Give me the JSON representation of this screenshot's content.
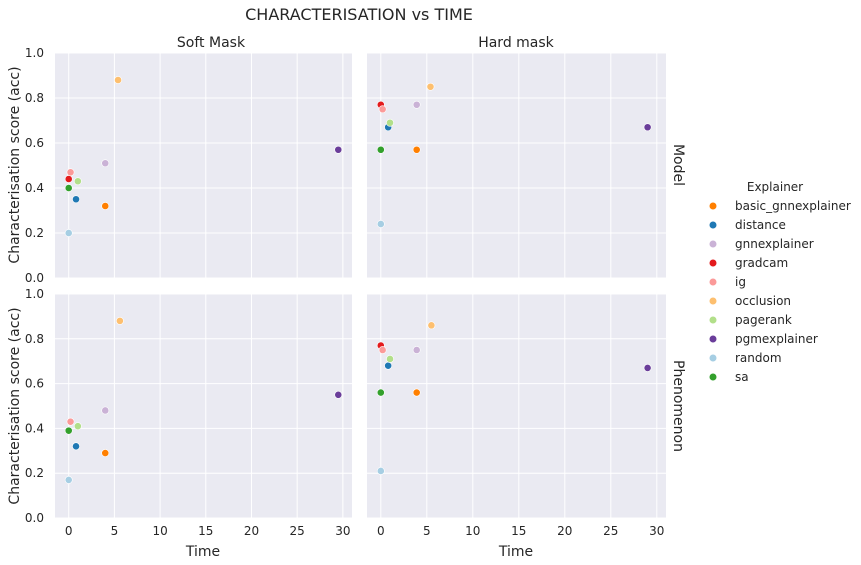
{
  "chart_data": {
    "type": "scatter",
    "title": "CHARACTERISATION vs TIME",
    "xlabel": "Time",
    "ylabel": "Characterisation score (acc)",
    "xlim": [
      -1.5,
      31
    ],
    "ylim": [
      0,
      1.0
    ],
    "xticks": [
      0,
      5,
      10,
      15,
      20,
      25,
      30
    ],
    "yticks": [
      0.0,
      0.2,
      0.4,
      0.6,
      0.8,
      1.0
    ],
    "xtick_labels": [
      "0",
      "5",
      "10",
      "15",
      "20",
      "25",
      "30"
    ],
    "ytick_labels": [
      "0.0",
      "0.2",
      "0.4",
      "0.6",
      "0.8",
      "1.0"
    ],
    "grid": true,
    "columns": [
      "Soft Mask",
      "Hard mask"
    ],
    "rows": [
      "Model",
      "Phenomenon"
    ],
    "legend": {
      "title": "Explainer",
      "placement": "right",
      "items": [
        {
          "name": "basic_gnnexplainer",
          "color": "#ff7f00"
        },
        {
          "name": "distance",
          "color": "#1f78b4"
        },
        {
          "name": "gnnexplainer",
          "color": "#cab2d6"
        },
        {
          "name": "gradcam",
          "color": "#e31a1c"
        },
        {
          "name": "ig",
          "color": "#fb9a99"
        },
        {
          "name": "occlusion",
          "color": "#fdbf6f"
        },
        {
          "name": "pagerank",
          "color": "#b2df8a"
        },
        {
          "name": "pgmexplainer",
          "color": "#6a3d9a"
        },
        {
          "name": "random",
          "color": "#a6cee3"
        },
        {
          "name": "sa",
          "color": "#33a02c"
        }
      ]
    },
    "panels": [
      {
        "row": "Model",
        "col": "Soft Mask",
        "points": [
          {
            "explainer": "basic_gnnexplainer",
            "x": 4.0,
            "y": 0.32
          },
          {
            "explainer": "distance",
            "x": 0.8,
            "y": 0.35
          },
          {
            "explainer": "gnnexplainer",
            "x": 4.0,
            "y": 0.51
          },
          {
            "explainer": "gradcam",
            "x": 0.0,
            "y": 0.44
          },
          {
            "explainer": "ig",
            "x": 0.2,
            "y": 0.47
          },
          {
            "explainer": "occlusion",
            "x": 5.4,
            "y": 0.88
          },
          {
            "explainer": "pagerank",
            "x": 1.0,
            "y": 0.43
          },
          {
            "explainer": "pgmexplainer",
            "x": 29.5,
            "y": 0.57
          },
          {
            "explainer": "random",
            "x": 0.0,
            "y": 0.2
          },
          {
            "explainer": "sa",
            "x": 0.0,
            "y": 0.4
          }
        ]
      },
      {
        "row": "Model",
        "col": "Hard mask",
        "points": [
          {
            "explainer": "basic_gnnexplainer",
            "x": 3.9,
            "y": 0.57
          },
          {
            "explainer": "distance",
            "x": 0.8,
            "y": 0.67
          },
          {
            "explainer": "gnnexplainer",
            "x": 3.9,
            "y": 0.77
          },
          {
            "explainer": "gradcam",
            "x": 0.0,
            "y": 0.77
          },
          {
            "explainer": "ig",
            "x": 0.2,
            "y": 0.75
          },
          {
            "explainer": "occlusion",
            "x": 5.4,
            "y": 0.85
          },
          {
            "explainer": "pagerank",
            "x": 1.0,
            "y": 0.69
          },
          {
            "explainer": "pgmexplainer",
            "x": 29.0,
            "y": 0.67
          },
          {
            "explainer": "random",
            "x": 0.0,
            "y": 0.24
          },
          {
            "explainer": "sa",
            "x": 0.0,
            "y": 0.57
          }
        ]
      },
      {
        "row": "Phenomenon",
        "col": "Soft Mask",
        "points": [
          {
            "explainer": "basic_gnnexplainer",
            "x": 4.0,
            "y": 0.29
          },
          {
            "explainer": "distance",
            "x": 0.8,
            "y": 0.32
          },
          {
            "explainer": "gnnexplainer",
            "x": 4.0,
            "y": 0.48
          },
          {
            "explainer": "ig",
            "x": 0.2,
            "y": 0.43
          },
          {
            "explainer": "occlusion",
            "x": 5.6,
            "y": 0.88
          },
          {
            "explainer": "pagerank",
            "x": 1.0,
            "y": 0.41
          },
          {
            "explainer": "pgmexplainer",
            "x": 29.5,
            "y": 0.55
          },
          {
            "explainer": "random",
            "x": 0.0,
            "y": 0.17
          },
          {
            "explainer": "sa",
            "x": 0.0,
            "y": 0.39
          }
        ]
      },
      {
        "row": "Phenomenon",
        "col": "Hard mask",
        "points": [
          {
            "explainer": "basic_gnnexplainer",
            "x": 3.9,
            "y": 0.56
          },
          {
            "explainer": "distance",
            "x": 0.8,
            "y": 0.68
          },
          {
            "explainer": "gnnexplainer",
            "x": 3.9,
            "y": 0.75
          },
          {
            "explainer": "gradcam",
            "x": 0.0,
            "y": 0.77
          },
          {
            "explainer": "ig",
            "x": 0.2,
            "y": 0.75
          },
          {
            "explainer": "occlusion",
            "x": 5.5,
            "y": 0.86
          },
          {
            "explainer": "pagerank",
            "x": 1.0,
            "y": 0.71
          },
          {
            "explainer": "pgmexplainer",
            "x": 29.0,
            "y": 0.67
          },
          {
            "explainer": "random",
            "x": 0.0,
            "y": 0.21
          },
          {
            "explainer": "sa",
            "x": 0.0,
            "y": 0.56
          }
        ]
      }
    ]
  }
}
